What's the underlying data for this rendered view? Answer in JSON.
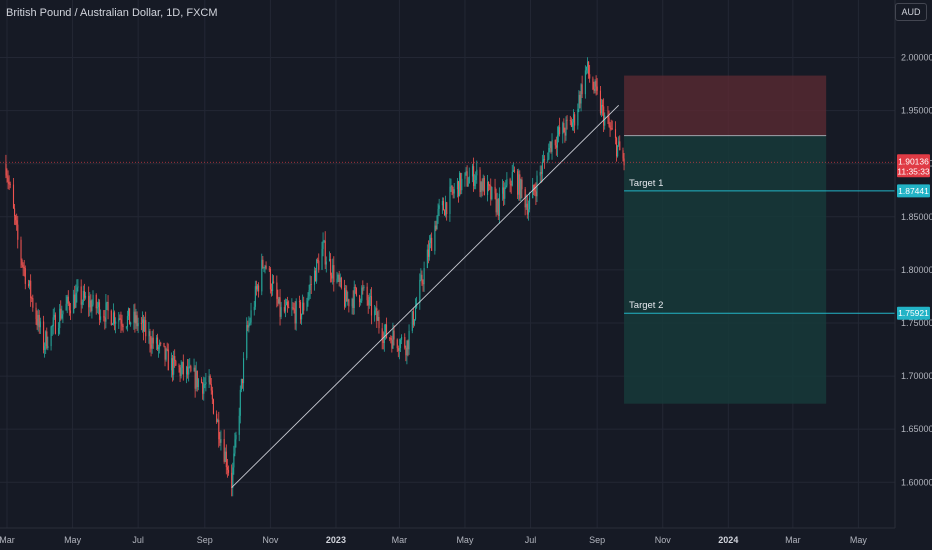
{
  "header": {
    "title": "British Pound / Australian Dollar, 1D, FXCM",
    "currency_label": "AUD"
  },
  "colors": {
    "background": "#161a25",
    "grid": "#232734",
    "up": "#26a69a",
    "down": "#ef5350",
    "stop_zone": "#5b2a32",
    "target_zone": "#16393a",
    "target_line": "#22b3c6",
    "price_tag": "#e03b45"
  },
  "chart_data": {
    "type": "candlestick",
    "title": "British Pound / Australian Dollar, 1D, FXCM",
    "y_range": [
      1.58,
      2.02
    ],
    "y_ticks": [
      "2.00000",
      "1.95000",
      "1.90000",
      "1.85000",
      "1.80000",
      "1.75000",
      "1.70000",
      "1.65000",
      "1.60000"
    ],
    "x_ticks": [
      "Mar",
      "May",
      "Jul",
      "Sep",
      "Nov",
      "2023",
      "Mar",
      "May",
      "Jul",
      "Sep",
      "Nov",
      "2024",
      "Mar",
      "May"
    ],
    "anchor_points": [
      {
        "date": "2022-02-28",
        "close": 1.9
      },
      {
        "date": "2022-03-12",
        "close": 1.82
      },
      {
        "date": "2022-04-04",
        "close": 1.73
      },
      {
        "date": "2022-04-20",
        "close": 1.76
      },
      {
        "date": "2022-05-05",
        "close": 1.775
      },
      {
        "date": "2022-06-01",
        "close": 1.76
      },
      {
        "date": "2022-07-01",
        "close": 1.75
      },
      {
        "date": "2022-08-01",
        "close": 1.71
      },
      {
        "date": "2022-09-05",
        "close": 1.69
      },
      {
        "date": "2022-09-26",
        "close": 1.6
      },
      {
        "date": "2022-10-10",
        "close": 1.74
      },
      {
        "date": "2022-10-26",
        "close": 1.81
      },
      {
        "date": "2022-11-10",
        "close": 1.76
      },
      {
        "date": "2022-11-30",
        "close": 1.76
      },
      {
        "date": "2022-12-20",
        "close": 1.82
      },
      {
        "date": "2023-01-10",
        "close": 1.77
      },
      {
        "date": "2023-01-25",
        "close": 1.78
      },
      {
        "date": "2023-02-15",
        "close": 1.74
      },
      {
        "date": "2023-03-08",
        "close": 1.73
      },
      {
        "date": "2023-04-05",
        "close": 1.85
      },
      {
        "date": "2023-04-25",
        "close": 1.88
      },
      {
        "date": "2023-05-10",
        "close": 1.89
      },
      {
        "date": "2023-06-01",
        "close": 1.86
      },
      {
        "date": "2023-06-15",
        "close": 1.89
      },
      {
        "date": "2023-06-29",
        "close": 1.86
      },
      {
        "date": "2023-07-20",
        "close": 1.92
      },
      {
        "date": "2023-08-10",
        "close": 1.94
      },
      {
        "date": "2023-08-22",
        "close": 1.99
      },
      {
        "date": "2023-09-05",
        "close": 1.95
      },
      {
        "date": "2023-09-26",
        "close": 1.90136
      }
    ],
    "trendline": {
      "from": {
        "date": "2022-09-26",
        "price": 1.595
      },
      "to": {
        "date": "2023-09-21",
        "price": 1.955
      }
    },
    "position": {
      "start_date": "2023-09-26",
      "end_date": "2024-04-01",
      "entry": 1.9265,
      "stop": 1.983,
      "target": 1.674
    },
    "levels": [
      {
        "label": "Target 1",
        "price": 1.87441,
        "tag": "1.87441"
      },
      {
        "label": "Target 2",
        "price": 1.75921,
        "tag": "1.75921"
      }
    ],
    "current_price": {
      "price": 1.90136,
      "tag": "1.90136",
      "countdown": "11:35:33"
    }
  }
}
